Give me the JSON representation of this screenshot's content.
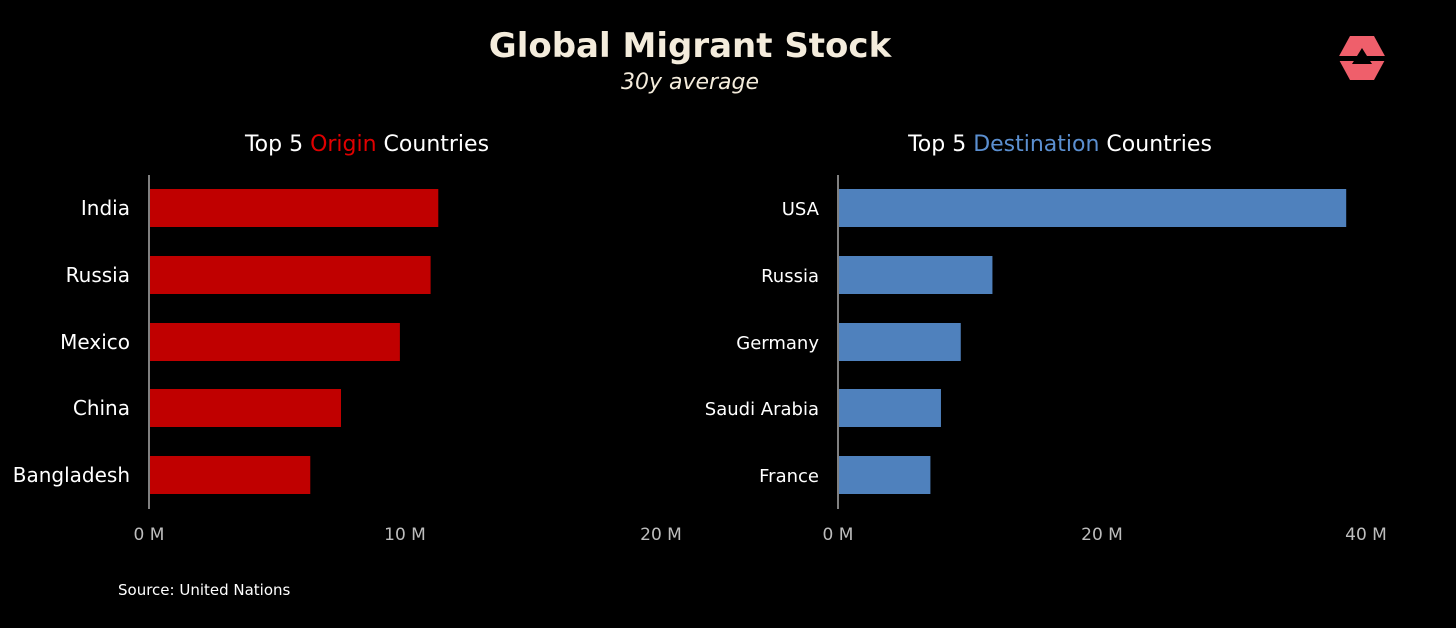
{
  "header": {
    "title": "Global Migrant Stock",
    "subtitle": "30y average"
  },
  "logo": {
    "icon": "hexagon-logo-icon",
    "color": "#ef5f6b"
  },
  "colors": {
    "origin": "#c00000",
    "destination": "#4f81bd",
    "text": "#ffffff",
    "tick": "#bdbdbd"
  },
  "chart_data": [
    {
      "type": "bar",
      "orientation": "horizontal",
      "title_parts": [
        "Top 5 ",
        "Origin",
        " Countries"
      ],
      "categories": [
        "India",
        "Russia",
        "Mexico",
        "China",
        "Bangladesh"
      ],
      "values": [
        11.3,
        11.0,
        9.8,
        7.5,
        6.3
      ],
      "unit": "M",
      "xlim": [
        0,
        20
      ],
      "xticks": [
        0,
        10,
        20
      ],
      "xtick_labels": [
        "0 M",
        "10 M",
        "20 M"
      ],
      "grid": false,
      "color": "#c00000"
    },
    {
      "type": "bar",
      "orientation": "horizontal",
      "title_parts": [
        "Top 5 ",
        "Destination",
        " Countries"
      ],
      "categories": [
        "USA",
        "Russia",
        "Germany",
        "Saudi Arabia",
        "France"
      ],
      "values": [
        38.5,
        11.7,
        9.3,
        7.8,
        7.0
      ],
      "unit": "M",
      "xlim": [
        0,
        40
      ],
      "xticks": [
        0,
        20,
        40
      ],
      "xtick_labels": [
        "0 M",
        "20 M",
        "40 M"
      ],
      "grid": false,
      "color": "#4f81bd"
    }
  ],
  "footer": {
    "source": "Source: United Nations"
  }
}
